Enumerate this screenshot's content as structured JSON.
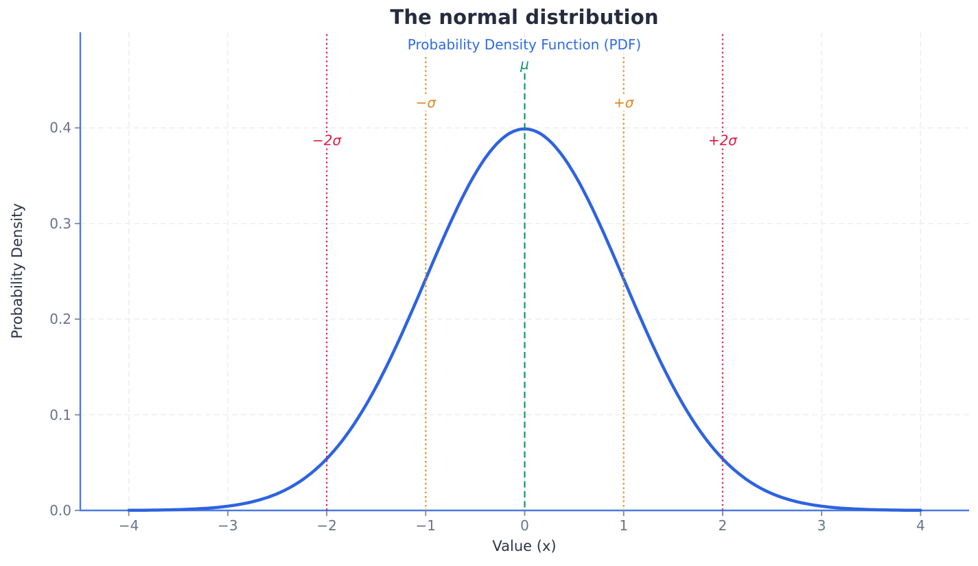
{
  "chart_data": {
    "type": "line",
    "title": "The normal distribution",
    "subtitle": "Probability Density Function (PDF)",
    "xlabel": "Value (x)",
    "ylabel": "Probability Density",
    "xlim": [
      -4.49,
      4.49
    ],
    "ylim": [
      0,
      0.5
    ],
    "grid": true,
    "legend": "none",
    "x_ticks": {
      "values": [
        -4,
        -3,
        -2,
        -1,
        0,
        1,
        2,
        3,
        4
      ],
      "labels": [
        "−4",
        "−3",
        "−2",
        "−1",
        "0",
        "1",
        "2",
        "3",
        "4"
      ]
    },
    "y_ticks": {
      "values": [
        0,
        0.1,
        0.2,
        0.3,
        0.4
      ],
      "labels": [
        "0.0",
        "0.1",
        "0.2",
        "0.3",
        "0.4"
      ]
    },
    "curve": {
      "name": "standard-normal-pdf",
      "mu": 0,
      "sigma": 1,
      "x_range": [
        -4,
        4
      ],
      "peak_value": 0.3989,
      "sample_points": {
        "x": [
          -4,
          -3.5,
          -3,
          -2.5,
          -2,
          -1.5,
          -1,
          -0.5,
          0,
          0.5,
          1,
          1.5,
          2,
          2.5,
          3,
          3.5,
          4
        ],
        "y": [
          0.0001,
          0.0009,
          0.0044,
          0.0175,
          0.054,
          0.1295,
          0.242,
          0.3521,
          0.3989,
          0.3521,
          0.242,
          0.1295,
          0.054,
          0.0175,
          0.0044,
          0.0009,
          0.0001
        ]
      }
    },
    "annotations": [
      {
        "id": "mu-line",
        "label": "μ",
        "x": 0,
        "style": "dashed",
        "color": "#0f9468",
        "line_top": 0.457,
        "label_y": 0.4663
      },
      {
        "id": "minus-sigma-line",
        "label": "−σ",
        "x": -1,
        "style": "dotted",
        "color": "#e0861a",
        "line_top": 0.474,
        "label_y": 0.426
      },
      {
        "id": "plus-sigma-line",
        "label": "+σ",
        "x": 1,
        "style": "dotted",
        "color": "#e0861a",
        "line_top": 0.474,
        "label_y": 0.426
      },
      {
        "id": "minus-2sigma-line",
        "label": "−2σ",
        "x": -2,
        "style": "dotted",
        "color": "#dc1a43",
        "line_top": 0.4978,
        "label_y": 0.3866
      },
      {
        "id": "plus-2sigma-line",
        "label": "+2σ",
        "x": 2,
        "style": "dotted",
        "color": "#dc1a43",
        "line_top": 0.4978,
        "label_y": 0.3866
      }
    ],
    "colors": {
      "curve_blue": "#2e63e0",
      "spine_blue": "#4a7ae2",
      "grid": "#ececec",
      "tick_mark": "#7d8795",
      "title_color": "#262c3e",
      "subtitle_color": "#2e6be4",
      "axis_label_color": "#2b3447",
      "tick_label_color": "#68738a",
      "background": "#ffffff"
    }
  }
}
